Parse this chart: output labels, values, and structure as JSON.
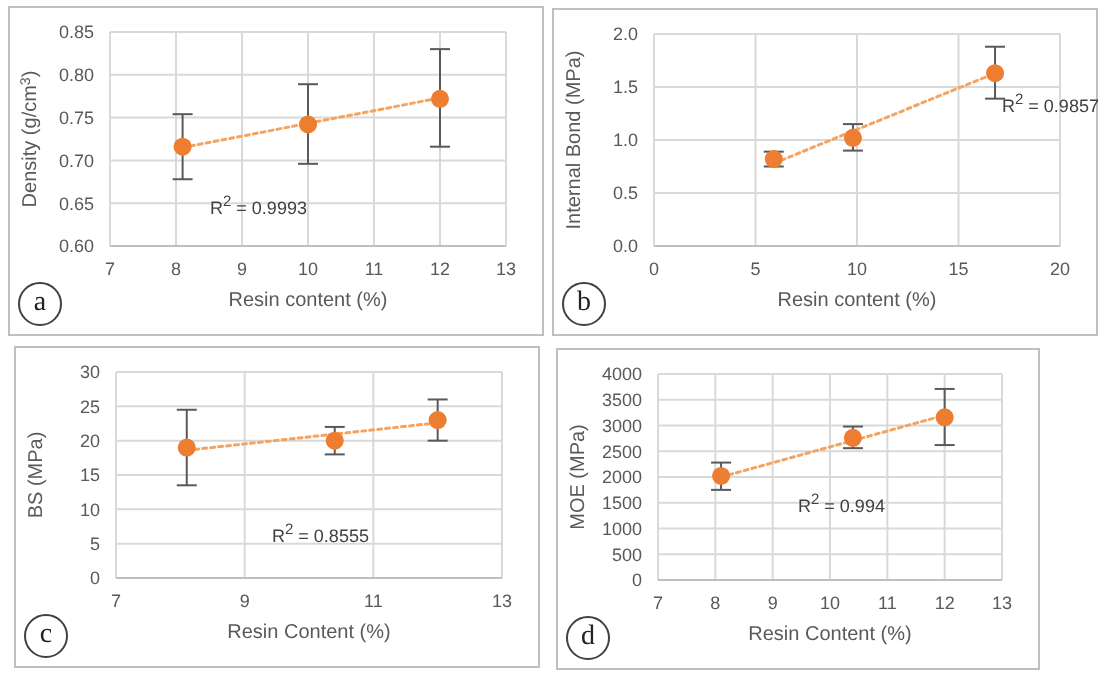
{
  "chart_data": [
    {
      "type": "scatter",
      "xlabel": "Resin content (%)",
      "ylabel": "Density (g/cm$^{3}$)",
      "x": [
        8.1,
        10,
        12
      ],
      "xlim": [
        7,
        13
      ],
      "xticks": [
        7,
        8,
        9,
        10,
        11,
        12,
        13
      ],
      "ylim": [
        0.6,
        0.85
      ],
      "yticks": [
        {
          "value": 0.6,
          "label": "0.60"
        },
        {
          "value": 0.65,
          "label": "0.65"
        },
        {
          "value": 0.7,
          "label": "0.70"
        },
        {
          "value": 0.75,
          "label": "0.75"
        },
        {
          "value": 0.8,
          "label": "0.80"
        },
        {
          "value": 0.85,
          "label": "0.85"
        }
      ],
      "grid": true,
      "series": [
        {
          "color": "#ed7d31",
          "marker": "circle",
          "values": [
            0.716,
            0.742,
            0.772
          ],
          "errors": [
            [
              0.678,
              0.754
            ],
            [
              0.696,
              0.789
            ],
            [
              0.716,
              0.83
            ]
          ]
        },
        {
          "type": "line",
          "color": "#f4a460",
          "line_style": "dotted",
          "x": [
            8.1,
            12
          ],
          "values": [
            0.715,
            0.773
          ]
        }
      ],
      "annotations": [
        "a",
        "R$^{2}$ = 0.9993"
      ]
    },
    {
      "type": "scatter",
      "xlabel": "Resin content (%)",
      "ylabel": "Internal Bond (MPa)",
      "x": [
        5.9,
        9.8,
        16.8
      ],
      "xlim": [
        0,
        20
      ],
      "xticks": [
        0,
        5,
        10,
        15,
        20
      ],
      "ylim": [
        0,
        2
      ],
      "yticks": [
        {
          "value": 0,
          "label": "0.0"
        },
        {
          "value": 0.5,
          "label": "0.5"
        },
        {
          "value": 1,
          "label": "1.0"
        },
        {
          "value": 1.5,
          "label": "1.5"
        },
        {
          "value": 2,
          "label": "2.0"
        }
      ],
      "grid": true,
      "series": [
        {
          "color": "#ed7d31",
          "marker": "circle",
          "values": [
            0.82,
            1.02,
            1.63
          ],
          "errors": [
            [
              0.75,
              0.89
            ],
            [
              0.9,
              1.15
            ],
            [
              1.39,
              1.88
            ]
          ]
        },
        {
          "type": "line",
          "color": "#f4a460",
          "line_style": "dotted",
          "x": [
            5.9,
            16.8
          ],
          "values": [
            0.78,
            1.63
          ]
        }
      ],
      "annotations": [
        "b",
        "R$^{2}$ = 0.9857"
      ]
    },
    {
      "type": "scatter",
      "xlabel": "Resin Content (%)",
      "ylabel": "BS (MPa)",
      "x": [
        8.1,
        10.4,
        12
      ],
      "xlim": [
        7,
        13
      ],
      "xticks": [
        7,
        9,
        11,
        13
      ],
      "ylim": [
        0,
        30
      ],
      "yticks": [
        0,
        5,
        10,
        15,
        20,
        25,
        30
      ],
      "grid": true,
      "series": [
        {
          "color": "#ed7d31",
          "marker": "circle",
          "values": [
            19,
            20,
            23
          ],
          "errors": [
            [
              13.5,
              24.5
            ],
            [
              18,
              22
            ],
            [
              20,
              26
            ]
          ]
        },
        {
          "type": "line",
          "color": "#f4a460",
          "line_style": "dotted",
          "x": [
            8.1,
            12
          ],
          "values": [
            18.6,
            22.6
          ]
        }
      ],
      "annotations": [
        "c",
        "R$^{2}$ = 0.8555"
      ]
    },
    {
      "type": "scatter",
      "xlabel": "Resin Content (%)",
      "ylabel": "MOE (MPa)",
      "x": [
        8.1,
        10.4,
        12
      ],
      "xlim": [
        7,
        13
      ],
      "xticks": [
        7,
        8,
        9,
        10,
        11,
        12,
        13
      ],
      "ylim": [
        0,
        4000
      ],
      "yticks": [
        0,
        500,
        1000,
        1500,
        2000,
        2500,
        3000,
        3500,
        4000
      ],
      "grid": true,
      "series": [
        {
          "color": "#ed7d31",
          "marker": "circle",
          "values": [
            2020,
            2760,
            3160
          ],
          "errors": [
            [
              1750,
              2280
            ],
            [
              2560,
              2980
            ],
            [
              2620,
              3710
            ]
          ]
        },
        {
          "type": "line",
          "color": "#f4a460",
          "line_style": "dotted",
          "x": [
            8.1,
            12
          ],
          "values": [
            2000,
            3200
          ]
        }
      ],
      "annotations": [
        "d",
        "R$^{2}$ = 0.994"
      ]
    }
  ]
}
